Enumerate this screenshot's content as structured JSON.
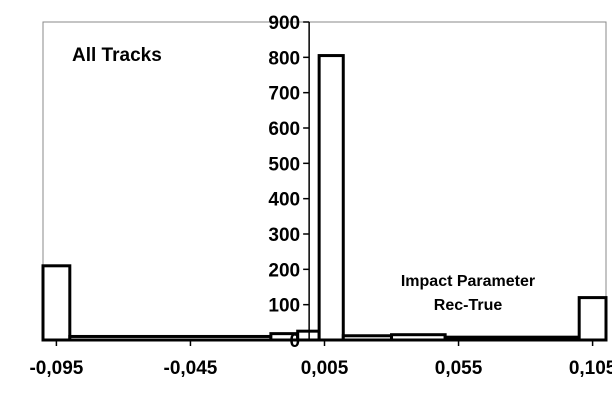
{
  "chart_data": {
    "type": "bar",
    "subtype": "histogram",
    "title": "All Tracks",
    "annotation_lines": [
      "Impact Parameter",
      "Rec-True"
    ],
    "xlim": [
      -0.1,
      0.11
    ],
    "ylim": [
      0,
      900
    ],
    "y_ticks": [
      "0",
      "100",
      "200",
      "300",
      "400",
      "500",
      "600",
      "700",
      "800",
      "900"
    ],
    "x_tick_values": [
      -0.095,
      -0.045,
      0.005,
      0.055,
      0.105
    ],
    "x_tick_labels": [
      "-0,095",
      "-0,045",
      "0,005",
      "0,055",
      "0,105"
    ],
    "legend": "none",
    "grid": false,
    "bins": [
      {
        "from": -0.1,
        "to": -0.09,
        "value": 210
      },
      {
        "from": -0.09,
        "to": -0.015,
        "value": 10
      },
      {
        "from": -0.015,
        "to": -0.005,
        "value": 18
      },
      {
        "from": -0.005,
        "to": 0.003,
        "value": 25
      },
      {
        "from": 0.003,
        "to": 0.012,
        "value": 805
      },
      {
        "from": 0.012,
        "to": 0.03,
        "value": 12
      },
      {
        "from": 0.03,
        "to": 0.05,
        "value": 15
      },
      {
        "from": 0.05,
        "to": 0.1,
        "value": 8
      },
      {
        "from": 0.1,
        "to": 0.11,
        "value": 120
      }
    ]
  }
}
